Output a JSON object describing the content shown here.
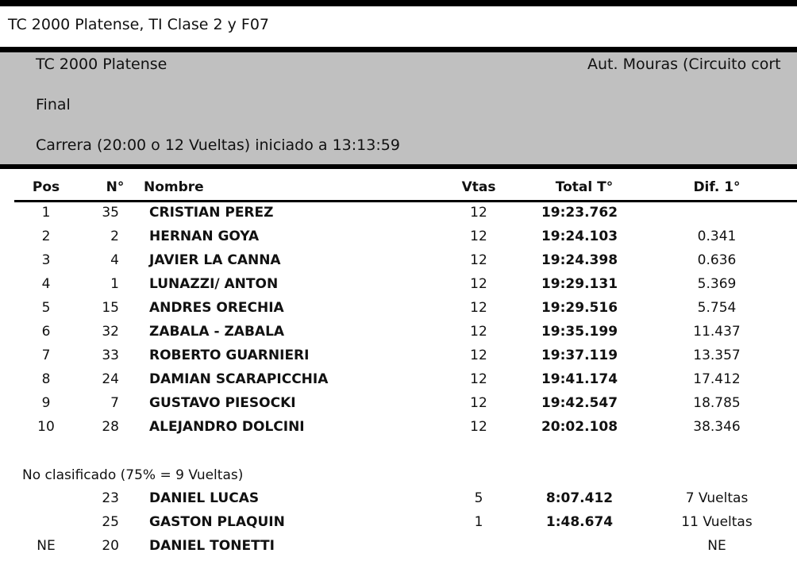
{
  "document_title": "TC 2000 Platense, TI Clase 2 y F07",
  "header": {
    "category": "TC 2000 Platense",
    "circuit": "Aut. Mouras (Circuito cort",
    "session": "Final",
    "race_info": "Carrera (20:00 o 12 Vueltas) iniciado a 13:13:59"
  },
  "columns": [
    "Pos",
    "N°",
    "Nombre",
    "Vtas",
    "Total T°",
    "Dif. 1°"
  ],
  "classified": [
    {
      "pos": "1",
      "num": "35",
      "name": "CRISTIAN PEREZ",
      "laps": "12",
      "total": "19:23.762",
      "diff": ""
    },
    {
      "pos": "2",
      "num": "2",
      "name": "HERNAN GOYA",
      "laps": "12",
      "total": "19:24.103",
      "diff": "0.341"
    },
    {
      "pos": "3",
      "num": "4",
      "name": "JAVIER LA CANNA",
      "laps": "12",
      "total": "19:24.398",
      "diff": "0.636"
    },
    {
      "pos": "4",
      "num": "1",
      "name": "LUNAZZI/ ANTON",
      "laps": "12",
      "total": "19:29.131",
      "diff": "5.369"
    },
    {
      "pos": "5",
      "num": "15",
      "name": "ANDRES ORECHIA",
      "laps": "12",
      "total": "19:29.516",
      "diff": "5.754"
    },
    {
      "pos": "6",
      "num": "32",
      "name": "ZABALA - ZABALA",
      "laps": "12",
      "total": "19:35.199",
      "diff": "11.437"
    },
    {
      "pos": "7",
      "num": "33",
      "name": "ROBERTO GUARNIERI",
      "laps": "12",
      "total": "19:37.119",
      "diff": "13.357"
    },
    {
      "pos": "8",
      "num": "24",
      "name": "DAMIAN SCARAPICCHIA",
      "laps": "12",
      "total": "19:41.174",
      "diff": "17.412"
    },
    {
      "pos": "9",
      "num": "7",
      "name": "GUSTAVO PIESOCKI",
      "laps": "12",
      "total": "19:42.547",
      "diff": "18.785"
    },
    {
      "pos": "10",
      "num": "28",
      "name": "ALEJANDRO DOLCINI",
      "laps": "12",
      "total": "20:02.108",
      "diff": "38.346"
    }
  ],
  "not_classified_label": "No clasificado (75% = 9 Vueltas)",
  "not_classified": [
    {
      "pos": "",
      "num": "23",
      "name": "DANIEL LUCAS",
      "laps": "5",
      "total": "8:07.412",
      "diff": "7 Vueltas"
    },
    {
      "pos": "",
      "num": "25",
      "name": "GASTON PLAQUIN",
      "laps": "1",
      "total": "1:48.674",
      "diff": "11 Vueltas"
    },
    {
      "pos": "NE",
      "num": "20",
      "name": "DANIEL TONETTI",
      "laps": "",
      "total": "",
      "diff": "NE"
    }
  ]
}
